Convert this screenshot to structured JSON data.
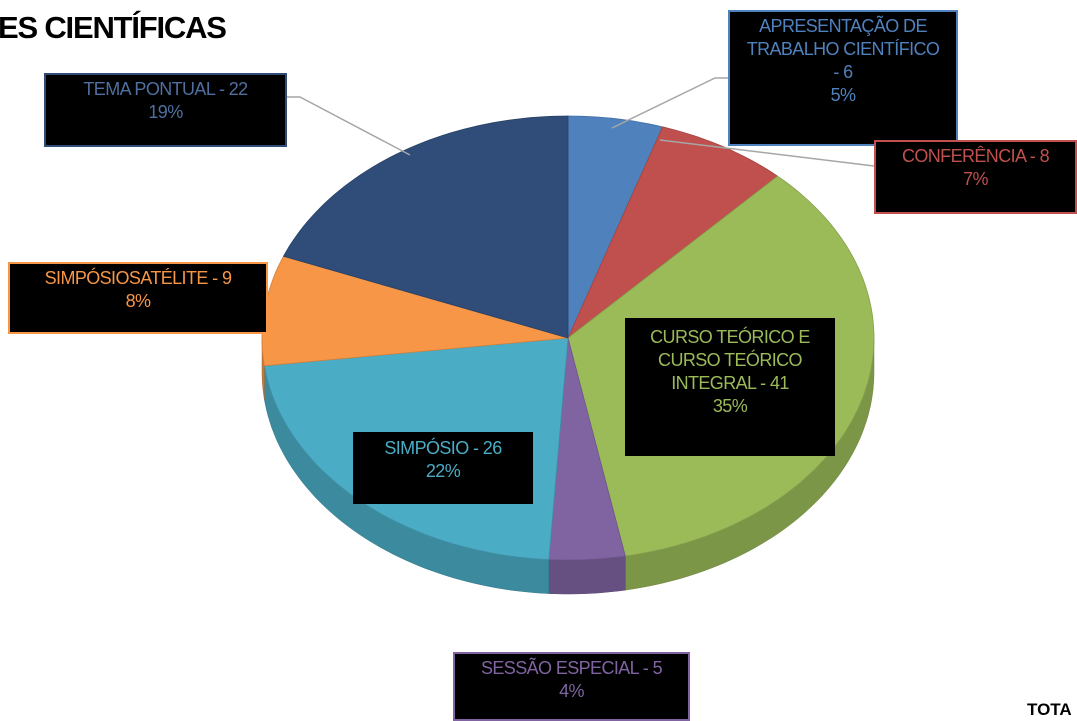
{
  "chart_data": {
    "type": "pie",
    "title": "ES CIENTÍFICAS",
    "annotation": "TOTA",
    "categories": [
      "APRESENTAÇÃO DE TRABALHO CIENTÍFICO - 6",
      "CONFERÊNCIA - 8",
      "CURSO TEÓRICO E CURSO TEÓRICO INTEGRAL - 41",
      "SESSÃO ESPECIAL - 5",
      "SIMPÓSIO - 26",
      "SIMPÓSIOSATÉLITE - 9",
      "TEMA PONTUAL - 22"
    ],
    "values": [
      5,
      7,
      35,
      4,
      22,
      8,
      19
    ],
    "value_labels": [
      "5%",
      "7%",
      "35%",
      "4%",
      "22%",
      "8%",
      "19%"
    ],
    "colors": [
      "#4f81bd",
      "#c0504d",
      "#9bbb59",
      "#8064a2",
      "#4bacc6",
      "#f79646",
      "#2f4d78"
    ]
  }
}
